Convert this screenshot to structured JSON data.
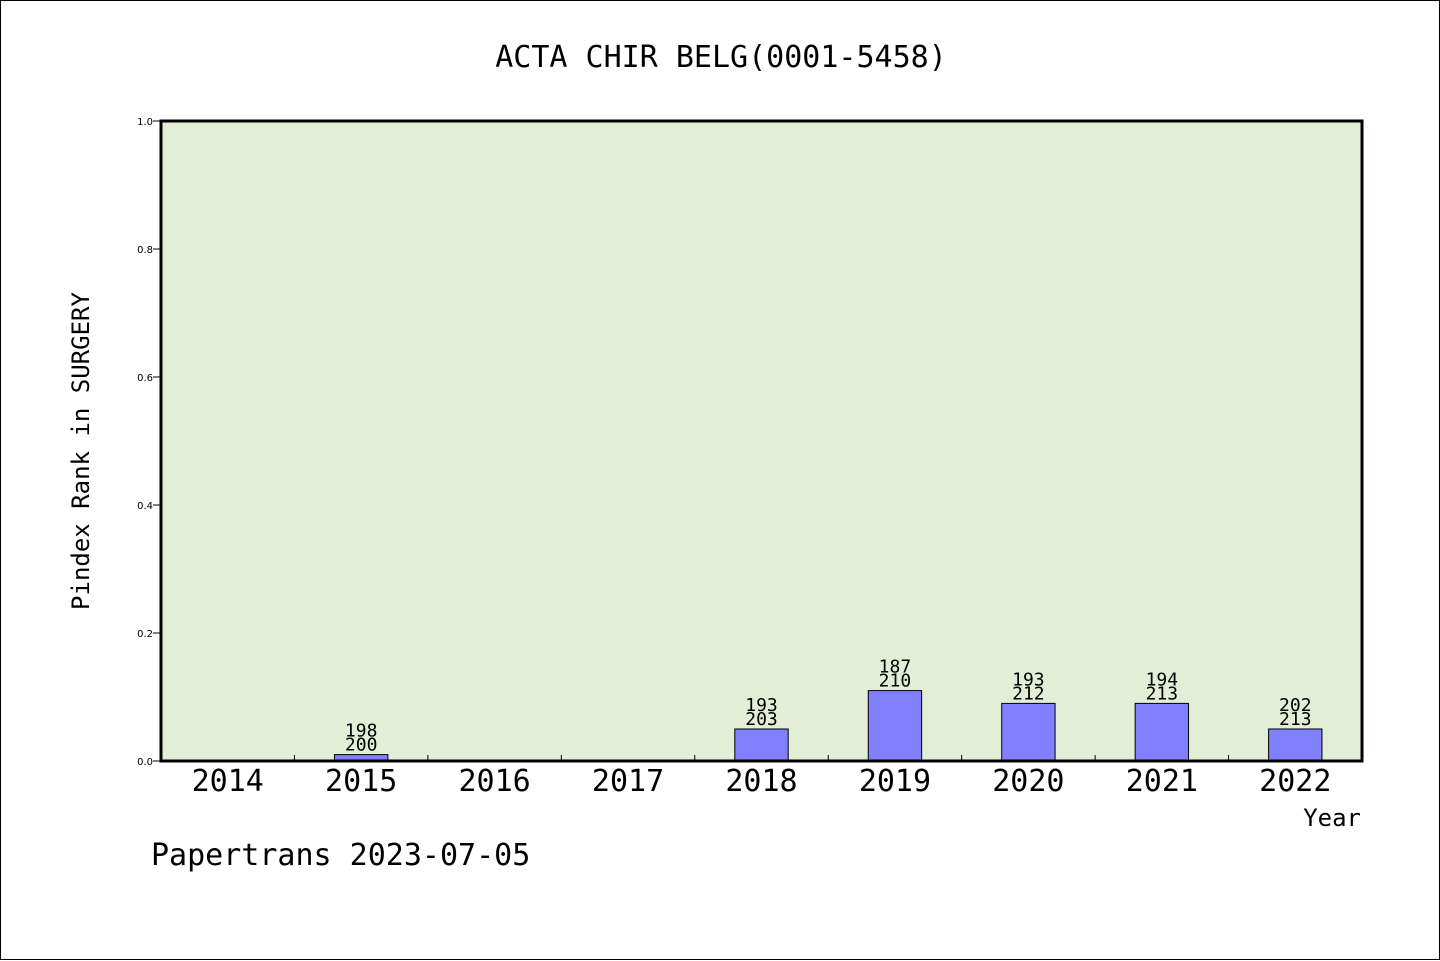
{
  "chart_data": {
    "type": "bar",
    "title": "ACTA CHIR BELG(0001-5458)",
    "xlabel": "Year",
    "ylabel": "Pindex Rank in SURGERY",
    "ylim": [
      0,
      1.0
    ],
    "yticks": [
      "0.0",
      "0.2",
      "0.4",
      "0.6",
      "0.8",
      "1.0"
    ],
    "categories": [
      "2014",
      "2015",
      "2016",
      "2017",
      "2018",
      "2019",
      "2020",
      "2021",
      "2022"
    ],
    "values": [
      0,
      0.01,
      0,
      0,
      0.05,
      0.11,
      0.09,
      0.09,
      0.05
    ],
    "labels_top": [
      "",
      "198",
      "",
      "",
      "193",
      "187",
      "193",
      "194",
      "202"
    ],
    "labels_bottom": [
      "",
      "200",
      "",
      "",
      "203",
      "210",
      "212",
      "213",
      "213"
    ],
    "grid": false,
    "plot_background": "#e2efd6",
    "bar_color": "#8080ff"
  },
  "footer": "Papertrans 2023-07-05"
}
